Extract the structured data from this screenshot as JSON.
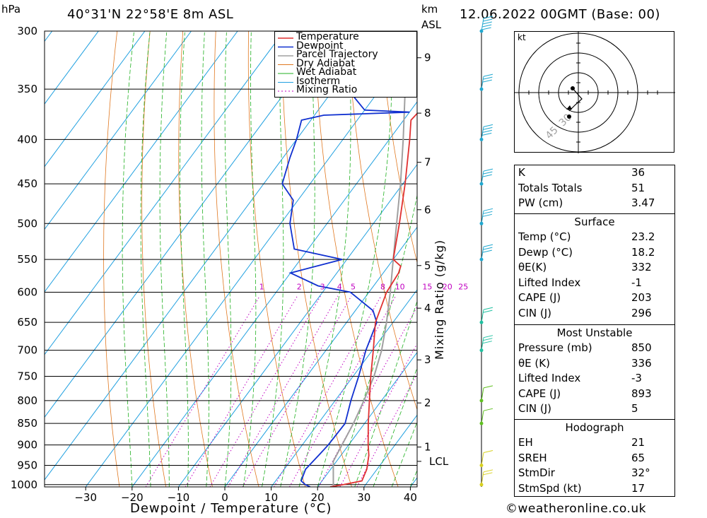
{
  "header": {
    "pressure_unit": "hPa",
    "location": "40°31'N  22°58'E  8m  ASL",
    "km_label": "km",
    "asl_label": "ASL",
    "datetime": "12.06.2022  00GMT  (Base: 00)"
  },
  "colors": {
    "temperature": "#e03030",
    "dewpoint": "#1030d0",
    "parcel": "#a0a0a0",
    "dry_adiabat": "#e07820",
    "wet_adiabat": "#20b020",
    "isotherm": "#20a0e0",
    "mixing_ratio": "#c000c0"
  },
  "chart_data": {
    "type": "skew-t log-p sounding",
    "xlabel": "Dewpoint / Temperature (°C)",
    "ylabel_right": "Mixing Ratio (g/kg)",
    "x_ticks": [
      -30,
      -20,
      -10,
      0,
      10,
      20,
      30,
      40
    ],
    "pressure_levels": [
      300,
      350,
      400,
      450,
      500,
      550,
      600,
      650,
      700,
      750,
      800,
      850,
      900,
      950,
      1000
    ],
    "height_km_ticks": [
      {
        "label": "9",
        "p": 322
      },
      {
        "label": "8",
        "p": 373
      },
      {
        "label": "7",
        "p": 425
      },
      {
        "label": "6",
        "p": 482
      },
      {
        "label": "5",
        "p": 559
      },
      {
        "label": "4",
        "p": 626
      },
      {
        "label": "3",
        "p": 718
      },
      {
        "label": "2",
        "p": 805
      },
      {
        "label": "1",
        "p": 905
      },
      {
        "label": "LCL",
        "p": 940
      }
    ],
    "mixing_ratio_labels": [
      "1",
      "2",
      "3",
      "4",
      "5",
      "8",
      "10",
      "15",
      "20",
      "25"
    ],
    "legend": [
      "Temperature",
      "Dewpoint",
      "Parcel Trajectory",
      "Dry Adiabat",
      "Wet Adiabat",
      "Isotherm",
      "Mixing Ratio"
    ],
    "series": [
      {
        "name": "Temperature",
        "points": [
          [
            1006,
            22.7
          ],
          [
            1000,
            25.2
          ],
          [
            990,
            28.6
          ],
          [
            960,
            27.8
          ],
          [
            925,
            26.0
          ],
          [
            900,
            24.2
          ],
          [
            850,
            20.8
          ],
          [
            800,
            17.4
          ],
          [
            750,
            13.8
          ],
          [
            700,
            10.2
          ],
          [
            650,
            6.2
          ],
          [
            600,
            3.8
          ],
          [
            570,
            3.3
          ],
          [
            560,
            2.7
          ],
          [
            550,
            0.0
          ],
          [
            500,
            -4.4
          ],
          [
            450,
            -9.5
          ],
          [
            400,
            -15.6
          ],
          [
            380,
            -18.4
          ],
          [
            372,
            -18.1
          ],
          [
            350,
            -21.3
          ],
          [
            325,
            -25.6
          ],
          [
            310,
            -28.7
          ],
          [
            300,
            -30.3
          ]
        ]
      },
      {
        "name": "Dewpoint",
        "points": [
          [
            1006,
            18.4
          ],
          [
            1000,
            17.0
          ],
          [
            990,
            15.5
          ],
          [
            960,
            14.6
          ],
          [
            925,
            15.2
          ],
          [
            900,
            15.6
          ],
          [
            850,
            15.8
          ],
          [
            800,
            13.4
          ],
          [
            750,
            11.2
          ],
          [
            700,
            8.6
          ],
          [
            650,
            6.5
          ],
          [
            630,
            3.8
          ],
          [
            600,
            -4.0
          ],
          [
            590,
            -12.0
          ],
          [
            570,
            -20.0
          ],
          [
            550,
            -11.0
          ],
          [
            535,
            -23.0
          ],
          [
            500,
            -28.0
          ],
          [
            470,
            -31.0
          ],
          [
            450,
            -36.0
          ],
          [
            420,
            -38.5
          ],
          [
            400,
            -40.0
          ],
          [
            380,
            -42.0
          ],
          [
            375,
            -38.0
          ],
          [
            372,
            -20.0
          ],
          [
            370,
            -30.0
          ],
          [
            350,
            -37.0
          ],
          [
            340,
            -42.0
          ],
          [
            320,
            -38.0
          ],
          [
            306,
            -45.0
          ],
          [
            300,
            -44.0
          ]
        ]
      },
      {
        "name": "Parcel Trajectory",
        "points": [
          [
            1006,
            23.4
          ],
          [
            940,
            19.3
          ],
          [
            850,
            17.6
          ],
          [
            800,
            16.2
          ],
          [
            750,
            14.5
          ],
          [
            700,
            12.0
          ],
          [
            650,
            8.6
          ],
          [
            600,
            4.6
          ],
          [
            550,
            0.0
          ],
          [
            500,
            -5.0
          ],
          [
            450,
            -10.5
          ],
          [
            400,
            -17.0
          ],
          [
            350,
            -24.6
          ],
          [
            300,
            -33.5
          ]
        ]
      }
    ],
    "wind_profile": [
      {
        "p": 1000,
        "speed_kt": 15
      },
      {
        "p": 950,
        "speed_kt": 10
      },
      {
        "p": 850,
        "speed_kt": 5
      },
      {
        "p": 800,
        "speed_kt": 10
      },
      {
        "p": 700,
        "speed_kt": 25
      },
      {
        "p": 650,
        "speed_kt": 20
      },
      {
        "p": 550,
        "speed_kt": 25
      },
      {
        "p": 500,
        "speed_kt": 25
      },
      {
        "p": 450,
        "speed_kt": 30
      },
      {
        "p": 400,
        "speed_kt": 35
      },
      {
        "p": 350,
        "speed_kt": 30
      },
      {
        "p": 300,
        "speed_kt": 45
      }
    ],
    "hodograph": {
      "unit": "kt",
      "ring_labels": [
        "45",
        "30"
      ]
    }
  },
  "indices": {
    "k": {
      "label": "K",
      "value": "36"
    },
    "totals": {
      "label": "Totals Totals",
      "value": "51"
    },
    "pw": {
      "label": "PW (cm)",
      "value": "3.47"
    },
    "surface": {
      "title": "Surface",
      "temp": {
        "label": "Temp (°C)",
        "value": "23.2"
      },
      "dewp": {
        "label": "Dewp (°C)",
        "value": "18.2"
      },
      "theta_e": {
        "label": "θE(K)",
        "value": "332"
      },
      "li": {
        "label": "Lifted Index",
        "value": "-1"
      },
      "cape": {
        "label": "CAPE (J)",
        "value": "203"
      },
      "cin": {
        "label": "CIN (J)",
        "value": "296"
      }
    },
    "most_unstable": {
      "title": "Most Unstable",
      "pressure": {
        "label": "Pressure (mb)",
        "value": "850"
      },
      "theta_e": {
        "label": "θE (K)",
        "value": "336"
      },
      "li": {
        "label": "Lifted Index",
        "value": "-3"
      },
      "cape": {
        "label": "CAPE (J)",
        "value": "893"
      },
      "cin": {
        "label": "CIN (J)",
        "value": "5"
      }
    },
    "hodograph": {
      "title": "Hodograph",
      "eh": {
        "label": "EH",
        "value": "21"
      },
      "sreh": {
        "label": "SREH",
        "value": "65"
      },
      "stmdir": {
        "label": "StmDir",
        "value": "32°"
      },
      "stmspd": {
        "label": "StmSpd (kt)",
        "value": "17"
      }
    }
  },
  "footer": {
    "credit": "©weatheronline.co.uk"
  }
}
